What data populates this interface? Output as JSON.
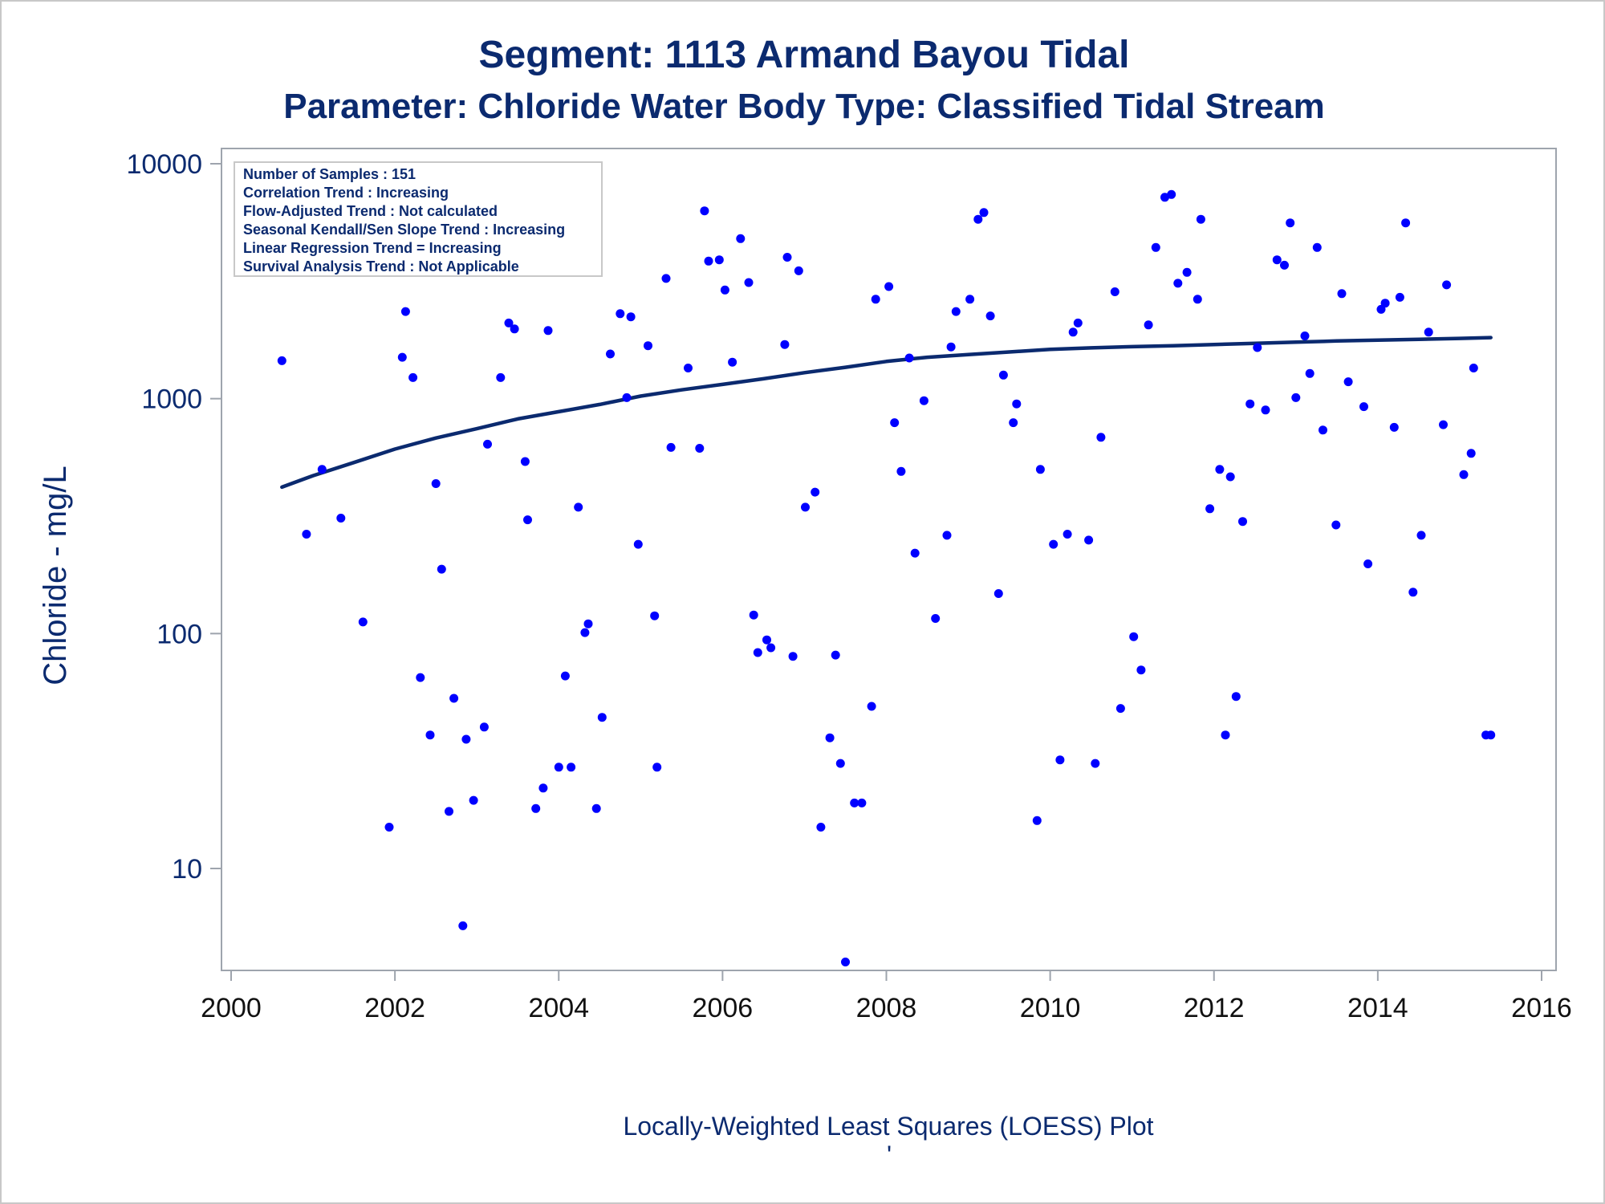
{
  "chart_data": {
    "type": "scatter",
    "title": "Segment: 1113  Armand Bayou Tidal",
    "subtitle": "Parameter: Chloride   Water Body Type: Classified Tidal Stream",
    "xlabel": "",
    "ylabel": "Chloride - mg/L",
    "footer": "Locally-Weighted Least Squares (LOESS) Plot",
    "footer_mark": "'",
    "y_scale": "log",
    "xlim": [
      2000,
      2016
    ],
    "ylim": [
      4,
      10000
    ],
    "x_ticks": [
      2000,
      2002,
      2004,
      2006,
      2008,
      2010,
      2012,
      2014,
      2016
    ],
    "y_ticks": [
      10,
      100,
      1000,
      10000
    ],
    "grid": false,
    "legend_position": "top-left",
    "inset_lines": [
      "Number of Samples : 151",
      "Correlation Trend : Increasing",
      "Flow-Adjusted Trend : Not calculated",
      "Seasonal Kendall/Sen Slope Trend : Increasing",
      "Linear Regression Trend = Increasing",
      "Survival Analysis Trend : Not Applicable"
    ],
    "colors": {
      "points": "#0000ff",
      "loess": "#0b2a6f",
      "text": "#0b2a6f"
    },
    "series": [
      {
        "type": "scatter",
        "points": [
          [
            2000.62,
            1450
          ],
          [
            2000.92,
            265
          ],
          [
            2001.11,
            500
          ],
          [
            2001.34,
            310
          ],
          [
            2001.61,
            112
          ],
          [
            2001.93,
            15
          ],
          [
            2002.09,
            1500
          ],
          [
            2002.13,
            2350
          ],
          [
            2002.22,
            1230
          ],
          [
            2002.31,
            65
          ],
          [
            2002.43,
            37
          ],
          [
            2002.5,
            435
          ],
          [
            2002.57,
            188
          ],
          [
            2002.66,
            17.5
          ],
          [
            2002.72,
            53
          ],
          [
            2002.83,
            5.7
          ],
          [
            2002.87,
            35.5
          ],
          [
            2002.96,
            19.5
          ],
          [
            2003.09,
            40
          ],
          [
            2003.13,
            640
          ],
          [
            2003.29,
            1230
          ],
          [
            2003.39,
            2100
          ],
          [
            2003.46,
            1980
          ],
          [
            2003.59,
            540
          ],
          [
            2003.62,
            305
          ],
          [
            2003.72,
            18
          ],
          [
            2003.81,
            22
          ],
          [
            2003.87,
            1950
          ],
          [
            2004.0,
            27
          ],
          [
            2004.08,
            66
          ],
          [
            2004.15,
            27
          ],
          [
            2004.24,
            345
          ],
          [
            2004.32,
            101
          ],
          [
            2004.36,
            110
          ],
          [
            2004.46,
            18
          ],
          [
            2004.53,
            44
          ],
          [
            2004.63,
            1550
          ],
          [
            2004.75,
            2300
          ],
          [
            2004.83,
            1010
          ],
          [
            2004.88,
            2230
          ],
          [
            2004.97,
            240
          ],
          [
            2005.09,
            1680
          ],
          [
            2005.17,
            119
          ],
          [
            2005.2,
            27
          ],
          [
            2005.31,
            3250
          ],
          [
            2005.37,
            620
          ],
          [
            2005.58,
            1350
          ],
          [
            2005.72,
            615
          ],
          [
            2005.78,
            6300
          ],
          [
            2005.83,
            3850
          ],
          [
            2005.96,
            3900
          ],
          [
            2006.03,
            2900
          ],
          [
            2006.12,
            1430
          ],
          [
            2006.22,
            4800
          ],
          [
            2006.32,
            3120
          ],
          [
            2006.38,
            120
          ],
          [
            2006.43,
            83
          ],
          [
            2006.54,
            94
          ],
          [
            2006.59,
            87
          ],
          [
            2006.76,
            1700
          ],
          [
            2006.79,
            4000
          ],
          [
            2006.86,
            80
          ],
          [
            2006.93,
            3500
          ],
          [
            2007.01,
            345
          ],
          [
            2007.13,
            400
          ],
          [
            2007.2,
            15
          ],
          [
            2007.31,
            36
          ],
          [
            2007.38,
            81
          ],
          [
            2007.44,
            28
          ],
          [
            2007.5,
            4
          ],
          [
            2007.61,
            19
          ],
          [
            2007.7,
            19
          ],
          [
            2007.82,
            49
          ],
          [
            2007.87,
            2650
          ],
          [
            2008.03,
            3000
          ],
          [
            2008.1,
            790
          ],
          [
            2008.18,
            490
          ],
          [
            2008.28,
            1490
          ],
          [
            2008.35,
            220
          ],
          [
            2008.46,
            980
          ],
          [
            2008.6,
            116
          ],
          [
            2008.74,
            262
          ],
          [
            2008.79,
            1660
          ],
          [
            2008.85,
            2350
          ],
          [
            2009.02,
            2650
          ],
          [
            2009.12,
            5800
          ],
          [
            2009.19,
            6200
          ],
          [
            2009.27,
            2250
          ],
          [
            2009.37,
            148
          ],
          [
            2009.43,
            1260
          ],
          [
            2009.55,
            790
          ],
          [
            2009.59,
            950
          ],
          [
            2009.84,
            16
          ],
          [
            2009.88,
            500
          ],
          [
            2010.04,
            240
          ],
          [
            2010.12,
            29
          ],
          [
            2010.21,
            265
          ],
          [
            2010.28,
            1920
          ],
          [
            2010.34,
            2100
          ],
          [
            2010.47,
            250
          ],
          [
            2010.55,
            28
          ],
          [
            2010.62,
            685
          ],
          [
            2010.79,
            2850
          ],
          [
            2010.86,
            48
          ],
          [
            2011.02,
            97
          ],
          [
            2011.11,
            70
          ],
          [
            2011.2,
            2060
          ],
          [
            2011.29,
            4400
          ],
          [
            2011.4,
            7200
          ],
          [
            2011.48,
            7400
          ],
          [
            2011.56,
            3100
          ],
          [
            2011.67,
            3450
          ],
          [
            2011.8,
            2650
          ],
          [
            2011.84,
            5800
          ],
          [
            2011.95,
            340
          ],
          [
            2012.07,
            500
          ],
          [
            2012.14,
            37
          ],
          [
            2012.2,
            465
          ],
          [
            2012.27,
            54
          ],
          [
            2012.35,
            300
          ],
          [
            2012.44,
            950
          ],
          [
            2012.53,
            1650
          ],
          [
            2012.63,
            895
          ],
          [
            2012.77,
            3900
          ],
          [
            2012.86,
            3700
          ],
          [
            2012.93,
            5600
          ],
          [
            2013.0,
            1010
          ],
          [
            2013.11,
            1850
          ],
          [
            2013.17,
            1280
          ],
          [
            2013.26,
            4400
          ],
          [
            2013.33,
            735
          ],
          [
            2013.49,
            290
          ],
          [
            2013.56,
            2800
          ],
          [
            2013.64,
            1180
          ],
          [
            2013.83,
            925
          ],
          [
            2013.88,
            198
          ],
          [
            2014.04,
            2400
          ],
          [
            2014.09,
            2550
          ],
          [
            2014.2,
            755
          ],
          [
            2014.27,
            2700
          ],
          [
            2014.34,
            5600
          ],
          [
            2014.43,
            150
          ],
          [
            2014.53,
            262
          ],
          [
            2014.62,
            1920
          ],
          [
            2014.8,
            775
          ],
          [
            2014.84,
            3050
          ],
          [
            2015.05,
            475
          ],
          [
            2015.14,
            585
          ],
          [
            2015.17,
            1350
          ],
          [
            2015.32,
            37
          ],
          [
            2015.38,
            37
          ]
        ]
      },
      {
        "type": "line",
        "points": [
          [
            2000.62,
            420
          ],
          [
            2001.0,
            470
          ],
          [
            2001.5,
            535
          ],
          [
            2002.0,
            610
          ],
          [
            2002.5,
            680
          ],
          [
            2003.0,
            745
          ],
          [
            2003.5,
            820
          ],
          [
            2004.0,
            880
          ],
          [
            2004.5,
            945
          ],
          [
            2005.0,
            1025
          ],
          [
            2005.5,
            1090
          ],
          [
            2006.0,
            1150
          ],
          [
            2006.5,
            1215
          ],
          [
            2007.0,
            1290
          ],
          [
            2007.5,
            1360
          ],
          [
            2008.0,
            1440
          ],
          [
            2008.5,
            1500
          ],
          [
            2009.0,
            1540
          ],
          [
            2009.5,
            1580
          ],
          [
            2010.0,
            1620
          ],
          [
            2010.5,
            1645
          ],
          [
            2011.0,
            1665
          ],
          [
            2011.5,
            1680
          ],
          [
            2012.0,
            1700
          ],
          [
            2012.5,
            1720
          ],
          [
            2013.0,
            1740
          ],
          [
            2013.5,
            1760
          ],
          [
            2014.0,
            1775
          ],
          [
            2014.5,
            1790
          ],
          [
            2015.0,
            1805
          ],
          [
            2015.38,
            1820
          ]
        ]
      }
    ]
  }
}
